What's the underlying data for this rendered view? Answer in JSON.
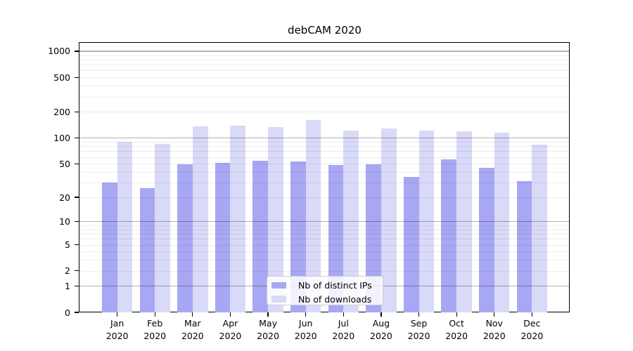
{
  "title": "debCAM 2020",
  "legend": {
    "items": [
      {
        "label": "Nb of distinct IPs",
        "color": "#a7a7f3"
      },
      {
        "label": "Nb of downloads",
        "color": "#d9d9f8"
      }
    ]
  },
  "y_axis": {
    "ticks": [
      {
        "label": "1000",
        "value": 1000
      },
      {
        "label": "500",
        "value": 500
      },
      {
        "label": "200",
        "value": 200
      },
      {
        "label": "100",
        "value": 100
      },
      {
        "label": "50",
        "value": 50
      },
      {
        "label": "20",
        "value": 20
      },
      {
        "label": "10",
        "value": 10
      },
      {
        "label": "5",
        "value": 5
      },
      {
        "label": "2",
        "value": 2
      },
      {
        "label": "1",
        "value": 1
      },
      {
        "label": "0",
        "value": 0
      }
    ]
  },
  "x_axis": {
    "labels": [
      {
        "month": "Jan",
        "year": "2020"
      },
      {
        "month": "Feb",
        "year": "2020"
      },
      {
        "month": "Mar",
        "year": "2020"
      },
      {
        "month": "Apr",
        "year": "2020"
      },
      {
        "month": "May",
        "year": "2020"
      },
      {
        "month": "Jun",
        "year": "2020"
      },
      {
        "month": "Jul",
        "year": "2020"
      },
      {
        "month": "Aug",
        "year": "2020"
      },
      {
        "month": "Sep",
        "year": "2020"
      },
      {
        "month": "Oct",
        "year": "2020"
      },
      {
        "month": "Nov",
        "year": "2020"
      },
      {
        "month": "Dec",
        "year": "2020"
      }
    ]
  },
  "colors": {
    "bar_distinct_ips": "#a7a7f3",
    "bar_downloads": "#d9d9f8",
    "grid_major": "rgba(0,0,0,0.30)",
    "grid_minor": "rgba(0,0,0,0.07)",
    "spine": "#000000"
  },
  "chart_data": {
    "type": "bar",
    "title": "debCAM 2020",
    "xlabel": "",
    "ylabel": "",
    "y_scale": "log10(value+1)",
    "ylim": [
      0,
      1250
    ],
    "grid": "both",
    "legend_position": "lower center",
    "categories": [
      "Jan 2020",
      "Feb 2020",
      "Mar 2020",
      "Apr 2020",
      "May 2020",
      "Jun 2020",
      "Jul 2020",
      "Aug 2020",
      "Sep 2020",
      "Oct 2020",
      "Nov 2020",
      "Dec 2020"
    ],
    "series": [
      {
        "name": "Nb of distinct IPs",
        "color": "#a7a7f3",
        "values": [
          30,
          26,
          49,
          51,
          54,
          53,
          48,
          49,
          35,
          56,
          45,
          31
        ]
      },
      {
        "name": "Nb of downloads",
        "color": "#d9d9f8",
        "values": [
          90,
          85,
          136,
          138,
          133,
          160,
          121,
          128,
          121,
          119,
          116,
          84
        ]
      }
    ]
  }
}
